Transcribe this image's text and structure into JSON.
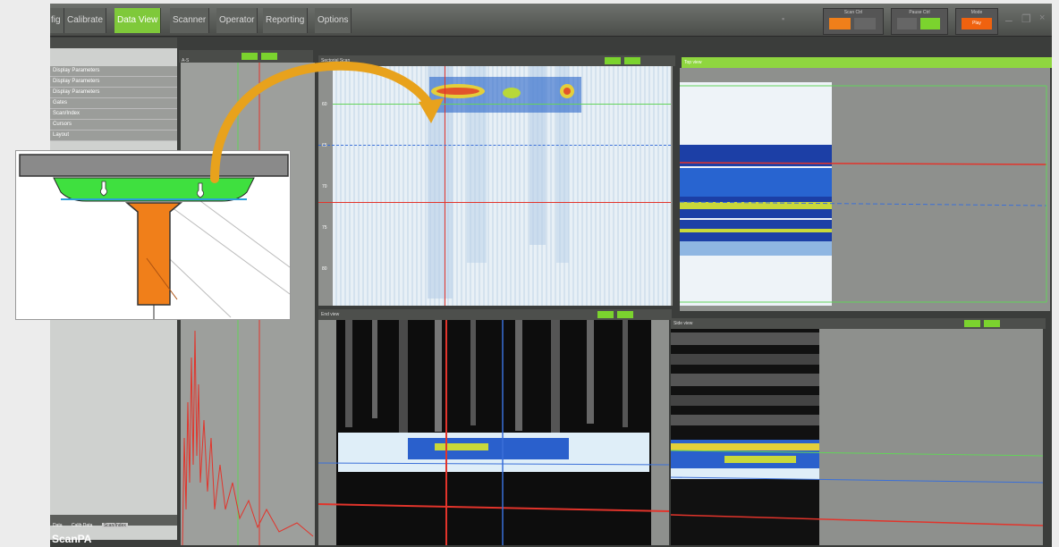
{
  "tabs": [
    {
      "label": "fig"
    },
    {
      "label": "Calibrate"
    },
    {
      "label": "Data View"
    },
    {
      "label": "Scanner"
    },
    {
      "label": "Operator"
    },
    {
      "label": "Reporting"
    },
    {
      "label": "Options"
    }
  ],
  "controls": {
    "ctl1_label": "Scan Ctrl",
    "ctl2_label": "Pause Ctrl",
    "ctl3_label": "Mode",
    "ctl3_value": "Play"
  },
  "left_menu": [
    "Display Parameters",
    "Display Parameters",
    "Display Parameters",
    "Gates",
    "Scan/Index",
    "Cursors",
    "Layout"
  ],
  "ascan_header": "A-S",
  "panels": {
    "bscan_title": "Sectorial Scan",
    "top_view_title": "Top view",
    "end_view_title": "End view",
    "side_view_title": "Side view"
  },
  "bottom_tabs": [
    "Data",
    "Calib Data",
    "Scan/Index"
  ],
  "logo": "ScanPA",
  "ticks": [
    "60",
    "65",
    "70",
    "75",
    "80"
  ],
  "colors": {
    "accent": "#7fc93a",
    "cursor_red": "#e2342b",
    "cursor_blue": "#2e5fd0",
    "part_orange": "#f07f1a",
    "part_green": "#3fe03f"
  }
}
